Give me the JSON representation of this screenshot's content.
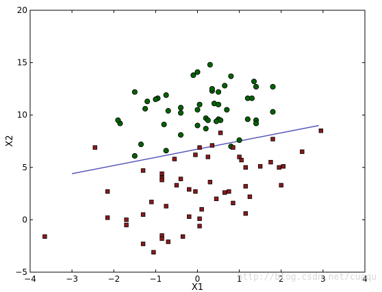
{
  "chart_data": {
    "type": "scatter",
    "title": "",
    "xlabel": "X1",
    "ylabel": "X2",
    "xlim": [
      -4,
      4
    ],
    "ylim": [
      -5,
      20
    ],
    "x_ticks": [
      "−4",
      "−3",
      "−2",
      "−1",
      "0",
      "1",
      "2",
      "3",
      "4"
    ],
    "y_ticks": [
      "−5",
      "0",
      "5",
      "10",
      "15",
      "20"
    ],
    "grid": false,
    "legend": "none",
    "watermark": "http://blog.csdn.net/cuoqu",
    "series": [
      {
        "marker": "circle",
        "color": "#006400",
        "edge": "#000000",
        "points": [
          [
            -1.5,
            12.2
          ],
          [
            -1.2,
            11.3
          ],
          [
            -1.25,
            10.6
          ],
          [
            -1.85,
            9.2
          ],
          [
            -1.9,
            9.5
          ],
          [
            -1.35,
            7.2
          ],
          [
            -1.5,
            6.1
          ],
          [
            -0.95,
            11.6
          ],
          [
            -1.0,
            11.5
          ],
          [
            -0.7,
            10.4
          ],
          [
            -0.75,
            11.9
          ],
          [
            -0.8,
            9.1
          ],
          [
            -0.4,
            10.2
          ],
          [
            -0.4,
            10.7
          ],
          [
            -0.4,
            8.1
          ],
          [
            -0.75,
            6.6
          ],
          [
            -0.1,
            13.8
          ],
          [
            0.0,
            14.1
          ],
          [
            0.3,
            14.8
          ],
          [
            0.35,
            12.3
          ],
          [
            0.35,
            12.5
          ],
          [
            0.5,
            12.2
          ],
          [
            0.65,
            12.8
          ],
          [
            0.8,
            13.7
          ],
          [
            0.0,
            10.5
          ],
          [
            0.05,
            11.0
          ],
          [
            0.2,
            9.7
          ],
          [
            0.25,
            9.5
          ],
          [
            0.2,
            8.7
          ],
          [
            0.0,
            9.0
          ],
          [
            0.4,
            11.1
          ],
          [
            0.5,
            11.0
          ],
          [
            0.5,
            9.6
          ],
          [
            0.55,
            9.5
          ],
          [
            0.45,
            9.4
          ],
          [
            0.7,
            10.5
          ],
          [
            0.8,
            7.0
          ],
          [
            1.0,
            7.6
          ],
          [
            1.2,
            11.6
          ],
          [
            1.3,
            11.6
          ],
          [
            1.35,
            13.2
          ],
          [
            1.4,
            12.7
          ],
          [
            1.2,
            9.6
          ],
          [
            1.4,
            9.5
          ],
          [
            1.4,
            9.2
          ],
          [
            1.8,
            12.7
          ],
          [
            1.8,
            10.3
          ]
        ]
      },
      {
        "marker": "square",
        "color": "#8b1a1a",
        "edge": "#000000",
        "points": [
          [
            -3.65,
            -1.6
          ],
          [
            -2.45,
            6.9
          ],
          [
            -2.15,
            2.7
          ],
          [
            -2.15,
            0.2
          ],
          [
            -1.7,
            0.0
          ],
          [
            -1.7,
            -0.5
          ],
          [
            -1.3,
            4.7
          ],
          [
            -1.3,
            0.5
          ],
          [
            -1.3,
            -2.3
          ],
          [
            -1.1,
            1.7
          ],
          [
            -1.05,
            -3.1
          ],
          [
            -0.85,
            4.4
          ],
          [
            -0.85,
            4.0
          ],
          [
            -0.85,
            3.8
          ],
          [
            -0.85,
            -1.5
          ],
          [
            -0.85,
            -1.8
          ],
          [
            -0.75,
            1.3
          ],
          [
            -0.7,
            -2.1
          ],
          [
            -0.55,
            5.8
          ],
          [
            -0.5,
            3.3
          ],
          [
            -0.4,
            3.9
          ],
          [
            -0.35,
            -1.6
          ],
          [
            -0.2,
            2.9
          ],
          [
            -0.2,
            0.3
          ],
          [
            -0.05,
            6.2
          ],
          [
            -0.05,
            2.7
          ],
          [
            0.05,
            6.9
          ],
          [
            0.05,
            0.1
          ],
          [
            0.05,
            -0.6
          ],
          [
            0.1,
            1.0
          ],
          [
            0.25,
            6.0
          ],
          [
            0.3,
            3.6
          ],
          [
            0.35,
            7.1
          ],
          [
            0.45,
            2.0
          ],
          [
            0.55,
            8.3
          ],
          [
            0.65,
            2.6
          ],
          [
            0.75,
            2.7
          ],
          [
            0.85,
            6.9
          ],
          [
            0.85,
            1.6
          ],
          [
            1.0,
            6.0
          ],
          [
            1.05,
            5.7
          ],
          [
            1.15,
            5.0
          ],
          [
            1.15,
            3.2
          ],
          [
            1.15,
            0.6
          ],
          [
            1.25,
            2.2
          ],
          [
            1.5,
            5.1
          ],
          [
            1.75,
            5.5
          ],
          [
            1.8,
            7.7
          ],
          [
            1.95,
            5.0
          ],
          [
            2.0,
            3.3
          ],
          [
            2.05,
            5.1
          ],
          [
            2.5,
            6.5
          ],
          [
            2.95,
            8.5
          ]
        ]
      }
    ],
    "decision_line": {
      "color": "#5555bb",
      "x": [
        -3.0,
        2.9
      ],
      "y": [
        4.4,
        9.0
      ]
    }
  }
}
